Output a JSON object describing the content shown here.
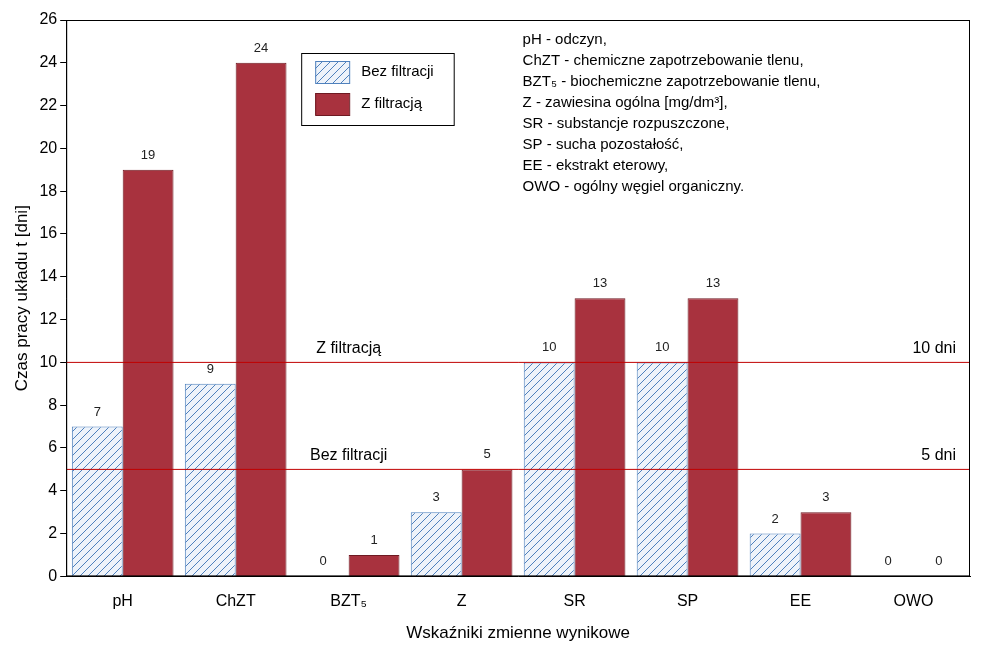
{
  "chart_data": {
    "type": "bar",
    "x_label": "Wskaźniki zmienne wynikowe",
    "y_label": "Czas pracy układu t [dni]",
    "categories": [
      "pH",
      "ChZT",
      "BZT₅",
      "Z",
      "SR",
      "SP",
      "EE",
      "OWO"
    ],
    "series": [
      {
        "name": "Bez filtracji",
        "color": "#4f81bd",
        "values": [
          7,
          9,
          0,
          3,
          10,
          10,
          2,
          0
        ]
      },
      {
        "name": "Z filtracją",
        "color": "#a8323e",
        "values": [
          19,
          24,
          1,
          5,
          13,
          13,
          3,
          0
        ]
      }
    ],
    "ylim": [
      0,
      26
    ],
    "yticks": [
      0,
      2,
      4,
      6,
      8,
      10,
      12,
      14,
      16,
      18,
      20,
      22,
      24,
      26
    ],
    "grid": false,
    "legend": "upper center",
    "data_labels": true,
    "reference_lines": [
      {
        "value": 10,
        "label": "Z filtracją",
        "end_label": "10 dni",
        "color": "#c00000"
      },
      {
        "value": 5,
        "label": "Bez filtracji",
        "end_label": "5 dni",
        "color": "#c00000"
      }
    ],
    "notes": [
      "pH - odczyn,",
      "ChZT - chemiczne zapotrzebowanie tlenu,",
      "BZT₅ - biochemiczne zapotrzebowanie tlenu,",
      "Z - zawiesina ogólna [mg/dm³],",
      "SR - substancje rozpuszczone,",
      "SP - sucha pozostałość,",
      "EE - ekstrakt eterowy,",
      "OWO - ogólny węgiel organiczny."
    ]
  }
}
